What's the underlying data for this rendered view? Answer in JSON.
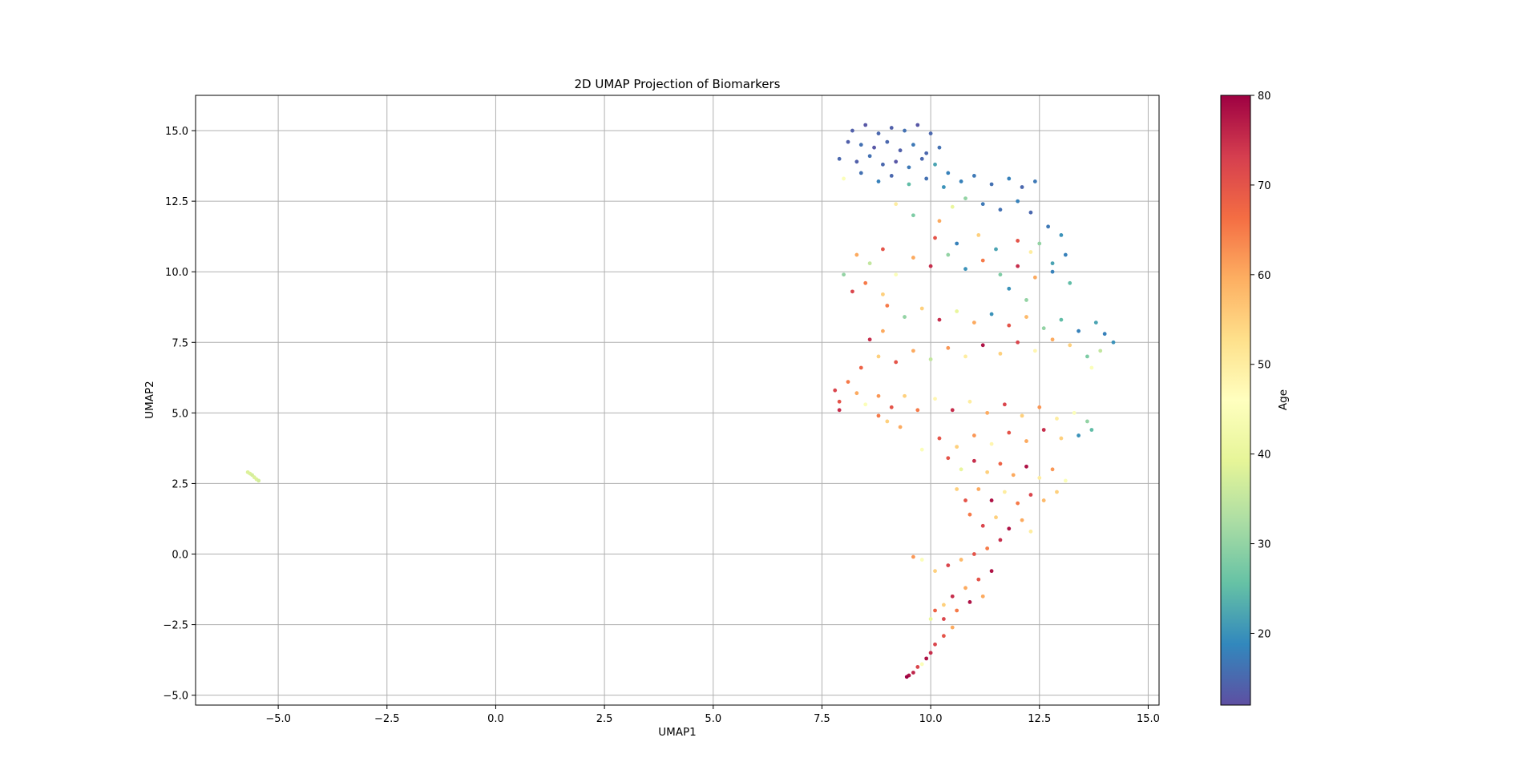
{
  "chart_data": {
    "type": "scatter",
    "title": "2D UMAP Projection of Biomarkers",
    "xlabel": "UMAP1",
    "ylabel": "UMAP2",
    "xlim": [
      -6.9,
      15.25
    ],
    "ylim": [
      -5.35,
      16.25
    ],
    "xticks": [
      {
        "value": -5.0,
        "label": "−5.0"
      },
      {
        "value": -2.5,
        "label": "−2.5"
      },
      {
        "value": 0.0,
        "label": "0.0"
      },
      {
        "value": 2.5,
        "label": "2.5"
      },
      {
        "value": 5.0,
        "label": "5.0"
      },
      {
        "value": 7.5,
        "label": "7.5"
      },
      {
        "value": 10.0,
        "label": "10.0"
      },
      {
        "value": 12.5,
        "label": "12.5"
      },
      {
        "value": 15.0,
        "label": "15.0"
      }
    ],
    "yticks": [
      {
        "value": -5.0,
        "label": "−5.0"
      },
      {
        "value": -2.5,
        "label": "−2.5"
      },
      {
        "value": 0.0,
        "label": "0.0"
      },
      {
        "value": 2.5,
        "label": "2.5"
      },
      {
        "value": 5.0,
        "label": "5.0"
      },
      {
        "value": 7.5,
        "label": "7.5"
      },
      {
        "value": 10.0,
        "label": "10.0"
      },
      {
        "value": 12.5,
        "label": "12.5"
      },
      {
        "value": 15.0,
        "label": "15.0"
      }
    ],
    "grid": true,
    "colormap": "Spectral_r",
    "colorbar": {
      "label": "Age",
      "range": [
        12,
        80
      ],
      "ticks": [
        {
          "value": 20,
          "label": "20"
        },
        {
          "value": 30,
          "label": "30"
        },
        {
          "value": 40,
          "label": "40"
        },
        {
          "value": 50,
          "label": "50"
        },
        {
          "value": 60,
          "label": "60"
        },
        {
          "value": 70,
          "label": "70"
        },
        {
          "value": 80,
          "label": "80"
        }
      ],
      "colors": [
        "#5e4fa2",
        "#3288bd",
        "#66c2a5",
        "#abdda4",
        "#e6f598",
        "#ffffbf",
        "#fee08b",
        "#fdae61",
        "#f46d43",
        "#d53e4f",
        "#9e0142"
      ]
    },
    "points": [
      [
        -5.7,
        2.9,
        38
      ],
      [
        -5.65,
        2.85,
        38
      ],
      [
        -5.6,
        2.8,
        37
      ],
      [
        -5.55,
        2.72,
        38
      ],
      [
        -5.5,
        2.65,
        38
      ],
      [
        -5.45,
        2.6,
        37
      ],
      [
        8.2,
        15.0,
        14
      ],
      [
        8.5,
        15.2,
        13
      ],
      [
        8.8,
        14.9,
        15
      ],
      [
        9.1,
        15.1,
        14
      ],
      [
        9.4,
        15.0,
        16
      ],
      [
        9.7,
        15.2,
        13
      ],
      [
        10.0,
        14.9,
        15
      ],
      [
        8.1,
        14.6,
        14
      ],
      [
        8.4,
        14.5,
        16
      ],
      [
        8.7,
        14.4,
        13
      ],
      [
        9.0,
        14.6,
        15
      ],
      [
        9.3,
        14.3,
        14
      ],
      [
        9.6,
        14.5,
        17
      ],
      [
        9.9,
        14.2,
        15
      ],
      [
        10.2,
        14.4,
        16
      ],
      [
        7.9,
        14.0,
        15
      ],
      [
        8.3,
        13.9,
        14
      ],
      [
        8.6,
        14.1,
        16
      ],
      [
        8.9,
        13.8,
        15
      ],
      [
        9.2,
        13.9,
        13
      ],
      [
        9.5,
        13.7,
        17
      ],
      [
        9.8,
        14.0,
        15
      ],
      [
        10.1,
        13.8,
        22
      ],
      [
        10.4,
        13.5,
        18
      ],
      [
        8.0,
        13.3,
        45
      ],
      [
        8.4,
        13.5,
        16
      ],
      [
        8.8,
        13.2,
        18
      ],
      [
        9.1,
        13.4,
        15
      ],
      [
        9.5,
        13.1,
        25
      ],
      [
        9.9,
        13.3,
        16
      ],
      [
        10.3,
        13.0,
        20
      ],
      [
        10.7,
        13.2,
        18
      ],
      [
        11.0,
        13.4,
        17
      ],
      [
        11.4,
        13.1,
        16
      ],
      [
        11.8,
        13.3,
        18
      ],
      [
        12.1,
        13.0,
        15
      ],
      [
        12.4,
        13.2,
        17
      ],
      [
        10.8,
        12.6,
        30
      ],
      [
        11.2,
        12.4,
        17
      ],
      [
        11.6,
        12.2,
        16
      ],
      [
        12.0,
        12.5,
        18
      ],
      [
        12.3,
        12.1,
        15
      ],
      [
        10.5,
        12.3,
        40
      ],
      [
        9.6,
        12.0,
        28
      ],
      [
        10.2,
        11.8,
        60
      ],
      [
        9.2,
        12.4,
        50
      ],
      [
        12.7,
        11.6,
        17
      ],
      [
        13.0,
        11.3,
        20
      ],
      [
        12.5,
        11.0,
        30
      ],
      [
        13.1,
        10.6,
        18
      ],
      [
        12.8,
        10.3,
        22
      ],
      [
        8.3,
        10.6,
        60
      ],
      [
        8.6,
        10.3,
        35
      ],
      [
        8.9,
        10.8,
        70
      ],
      [
        8.0,
        9.9,
        30
      ],
      [
        8.2,
        9.3,
        72
      ],
      [
        8.5,
        9.6,
        65
      ],
      [
        8.9,
        9.2,
        55
      ],
      [
        9.2,
        9.9,
        45
      ],
      [
        9.6,
        10.5,
        60
      ],
      [
        10.0,
        10.2,
        75
      ],
      [
        10.4,
        10.6,
        30
      ],
      [
        10.8,
        10.1,
        20
      ],
      [
        11.2,
        10.4,
        65
      ],
      [
        11.6,
        9.9,
        28
      ],
      [
        12.0,
        10.2,
        75
      ],
      [
        12.4,
        9.8,
        60
      ],
      [
        12.8,
        10.0,
        18
      ],
      [
        13.2,
        9.6,
        25
      ],
      [
        10.1,
        11.2,
        70
      ],
      [
        10.6,
        11.0,
        18
      ],
      [
        11.1,
        11.3,
        55
      ],
      [
        11.5,
        10.8,
        22
      ],
      [
        12.0,
        11.1,
        70
      ],
      [
        12.3,
        10.7,
        50
      ],
      [
        11.8,
        9.4,
        20
      ],
      [
        12.2,
        9.0,
        30
      ],
      [
        9.0,
        8.8,
        65
      ],
      [
        9.4,
        8.4,
        30
      ],
      [
        9.8,
        8.7,
        55
      ],
      [
        10.2,
        8.3,
        75
      ],
      [
        10.6,
        8.6,
        40
      ],
      [
        11.0,
        8.2,
        60
      ],
      [
        11.4,
        8.5,
        20
      ],
      [
        11.8,
        8.1,
        70
      ],
      [
        12.2,
        8.4,
        58
      ],
      [
        12.6,
        8.0,
        30
      ],
      [
        13.0,
        8.3,
        25
      ],
      [
        13.4,
        7.9,
        18
      ],
      [
        13.8,
        8.2,
        22
      ],
      [
        14.0,
        7.8,
        18
      ],
      [
        14.2,
        7.5,
        20
      ],
      [
        13.9,
        7.2,
        35
      ],
      [
        13.6,
        7.0,
        28
      ],
      [
        13.7,
        6.6,
        45
      ],
      [
        13.2,
        7.4,
        55
      ],
      [
        12.8,
        7.6,
        60
      ],
      [
        12.4,
        7.2,
        48
      ],
      [
        12.0,
        7.5,
        72
      ],
      [
        11.6,
        7.1,
        55
      ],
      [
        11.2,
        7.4,
        78
      ],
      [
        10.8,
        7.0,
        50
      ],
      [
        10.4,
        7.3,
        62
      ],
      [
        10.0,
        6.9,
        35
      ],
      [
        9.6,
        7.2,
        60
      ],
      [
        9.2,
        6.8,
        70
      ],
      [
        8.8,
        7.0,
        55
      ],
      [
        8.4,
        6.6,
        68
      ],
      [
        8.6,
        7.6,
        75
      ],
      [
        8.9,
        7.9,
        60
      ],
      [
        7.8,
        5.8,
        72
      ],
      [
        7.9,
        5.4,
        70
      ],
      [
        7.9,
        5.1,
        75
      ],
      [
        8.1,
        6.1,
        65
      ],
      [
        8.3,
        5.7,
        60
      ],
      [
        8.5,
        5.3,
        45
      ],
      [
        8.8,
        5.6,
        62
      ],
      [
        9.1,
        5.2,
        70
      ],
      [
        9.4,
        5.6,
        55
      ],
      [
        9.7,
        5.1,
        65
      ],
      [
        10.1,
        5.5,
        48
      ],
      [
        10.5,
        5.1,
        75
      ],
      [
        10.9,
        5.4,
        50
      ],
      [
        11.3,
        5.0,
        60
      ],
      [
        11.7,
        5.3,
        72
      ],
      [
        12.1,
        4.9,
        55
      ],
      [
        12.5,
        5.2,
        62
      ],
      [
        12.9,
        4.8,
        50
      ],
      [
        13.3,
        5.0,
        45
      ],
      [
        13.6,
        4.7,
        30
      ],
      [
        13.7,
        4.4,
        25
      ],
      [
        13.4,
        4.2,
        20
      ],
      [
        13.0,
        4.1,
        55
      ],
      [
        12.6,
        4.4,
        75
      ],
      [
        12.2,
        4.0,
        60
      ],
      [
        11.8,
        4.3,
        70
      ],
      [
        11.4,
        3.9,
        48
      ],
      [
        11.0,
        4.2,
        62
      ],
      [
        10.6,
        3.8,
        55
      ],
      [
        10.2,
        4.1,
        70
      ],
      [
        9.8,
        3.7,
        45
      ],
      [
        9.3,
        4.5,
        60
      ],
      [
        9.0,
        4.7,
        55
      ],
      [
        8.8,
        4.9,
        65
      ],
      [
        10.4,
        3.4,
        70
      ],
      [
        10.7,
        3.0,
        40
      ],
      [
        11.0,
        3.3,
        75
      ],
      [
        11.3,
        2.9,
        55
      ],
      [
        11.6,
        3.2,
        68
      ],
      [
        11.9,
        2.8,
        60
      ],
      [
        12.2,
        3.1,
        78
      ],
      [
        12.5,
        2.7,
        50
      ],
      [
        12.8,
        3.0,
        62
      ],
      [
        13.1,
        2.6,
        45
      ],
      [
        12.9,
        2.2,
        55
      ],
      [
        12.6,
        1.9,
        58
      ],
      [
        12.3,
        2.1,
        72
      ],
      [
        12.0,
        1.8,
        65
      ],
      [
        11.7,
        2.2,
        50
      ],
      [
        11.4,
        1.9,
        78
      ],
      [
        11.1,
        2.3,
        60
      ],
      [
        10.8,
        1.9,
        70
      ],
      [
        10.6,
        2.3,
        55
      ],
      [
        10.9,
        1.4,
        65
      ],
      [
        11.2,
        1.0,
        72
      ],
      [
        11.5,
        1.3,
        55
      ],
      [
        11.8,
        0.9,
        78
      ],
      [
        12.1,
        1.2,
        60
      ],
      [
        12.3,
        0.8,
        50
      ],
      [
        11.6,
        0.5,
        75
      ],
      [
        11.3,
        0.2,
        65
      ],
      [
        11.0,
        0.0,
        70
      ],
      [
        10.7,
        -0.2,
        58
      ],
      [
        10.4,
        -0.4,
        72
      ],
      [
        10.1,
        -0.6,
        55
      ],
      [
        9.8,
        -0.2,
        45
      ],
      [
        9.6,
        -0.1,
        62
      ],
      [
        11.4,
        -0.6,
        78
      ],
      [
        11.1,
        -0.9,
        70
      ],
      [
        10.8,
        -1.2,
        60
      ],
      [
        10.5,
        -1.5,
        75
      ],
      [
        10.3,
        -1.8,
        55
      ],
      [
        10.1,
        -2.0,
        68
      ],
      [
        10.0,
        -2.3,
        40
      ],
      [
        10.3,
        -2.3,
        72
      ],
      [
        10.6,
        -2.0,
        65
      ],
      [
        10.9,
        -1.7,
        78
      ],
      [
        11.2,
        -1.5,
        60
      ],
      [
        10.5,
        -2.6,
        60
      ],
      [
        10.3,
        -2.9,
        70
      ],
      [
        10.1,
        -3.2,
        72
      ],
      [
        10.0,
        -3.5,
        75
      ],
      [
        9.9,
        -3.7,
        78
      ],
      [
        9.8,
        -3.9,
        45
      ],
      [
        9.7,
        -4.0,
        72
      ],
      [
        9.6,
        -4.2,
        76
      ],
      [
        9.5,
        -4.3,
        78
      ],
      [
        9.45,
        -4.35,
        80
      ]
    ]
  }
}
